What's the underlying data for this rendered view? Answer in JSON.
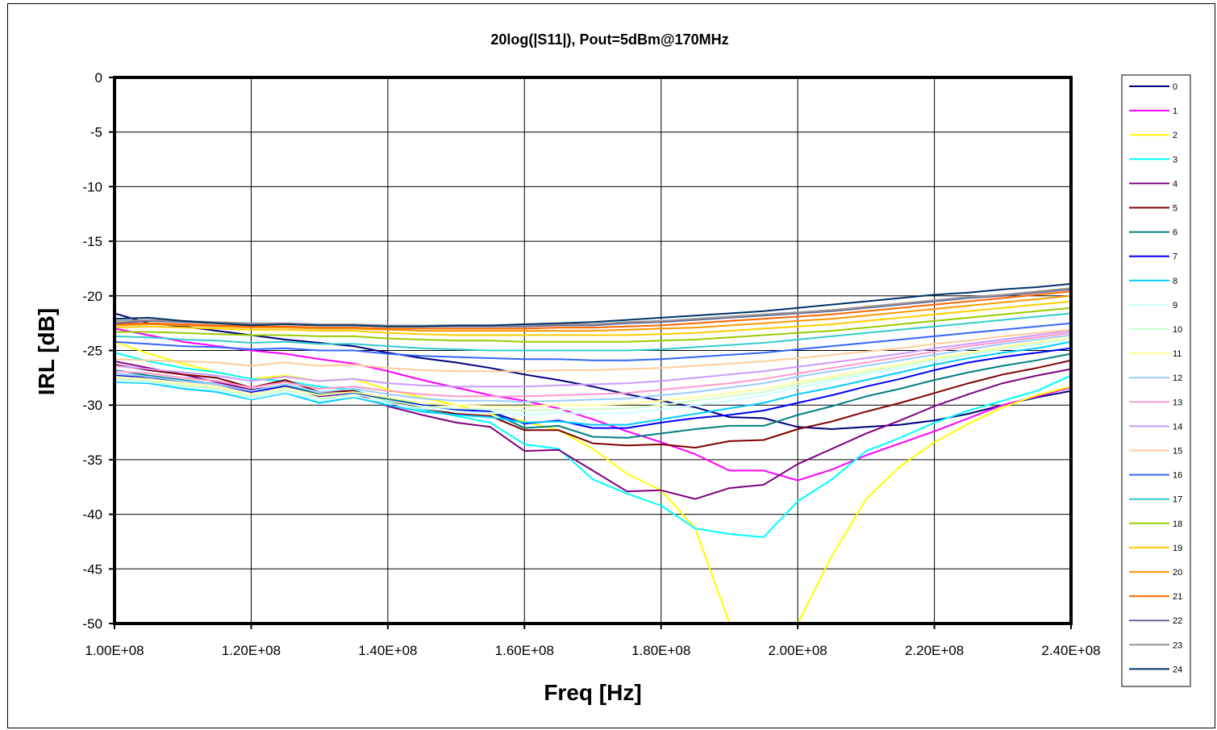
{
  "chart_data": {
    "type": "line",
    "title": "20log(|S11|), Pout=5dBm@170MHz",
    "xlabel": "Freq [Hz]",
    "ylabel": "IRL [dB]",
    "xlim": [
      100000000,
      240000000
    ],
    "ylim": [
      -50,
      0
    ],
    "x_ticks": [
      100000000,
      120000000,
      140000000,
      160000000,
      180000000,
      200000000,
      220000000,
      240000000
    ],
    "x_tick_labels": [
      "1.00E+08",
      "1.20E+08",
      "1.40E+08",
      "1.60E+08",
      "1.80E+08",
      "2.00E+08",
      "2.20E+08",
      "2.40E+08"
    ],
    "y_ticks": [
      0,
      -5,
      -10,
      -15,
      -20,
      -25,
      -30,
      -35,
      -40,
      -45,
      -50
    ],
    "y_tick_labels": [
      "0",
      "-5",
      "-10",
      "-15",
      "-20",
      "-25",
      "-30",
      "-35",
      "-40",
      "-45",
      "-50"
    ],
    "grid": true,
    "legend_position": "right",
    "x": [
      100000000,
      105000000,
      110000000,
      115000000,
      120000000,
      125000000,
      130000000,
      135000000,
      140000000,
      145000000,
      150000000,
      155000000,
      160000000,
      165000000,
      170000000,
      175000000,
      180000000,
      185000000,
      190000000,
      195000000,
      200000000,
      205000000,
      210000000,
      215000000,
      220000000,
      225000000,
      230000000,
      235000000,
      240000000
    ],
    "series": [
      {
        "name": "0",
        "color": "#000080",
        "values": [
          -21.6,
          -22.5,
          -22.8,
          -23.2,
          -23.6,
          -24.0,
          -24.3,
          -24.6,
          -25.2,
          -25.7,
          -26.1,
          -26.6,
          -27.2,
          -27.7,
          -28.3,
          -29.0,
          -29.6,
          -30.2,
          -31.1,
          -31.2,
          -32.0,
          -32.2,
          -32.0,
          -31.8,
          -31.4,
          -30.8,
          -30.0,
          -29.3,
          -28.7
        ]
      },
      {
        "name": "1",
        "color": "#FF00FF",
        "values": [
          -23.0,
          -23.6,
          -24.2,
          -24.6,
          -25.0,
          -25.3,
          -25.8,
          -26.2,
          -26.9,
          -27.7,
          -28.4,
          -29.1,
          -29.6,
          -30.3,
          -31.3,
          -32.4,
          -33.4,
          -34.5,
          -36.0,
          -36.0,
          -36.9,
          -35.9,
          -34.6,
          -33.5,
          -32.4,
          -31.2,
          -30.0,
          -29.2,
          -28.4
        ]
      },
      {
        "name": "2",
        "color": "#FFFF00",
        "values": [
          -24.2,
          -25.3,
          -26.2,
          -27.0,
          -27.6,
          -27.3,
          -27.8,
          -27.6,
          -28.6,
          -29.3,
          -30.0,
          -30.8,
          -31.5,
          -32.3,
          -34.0,
          -36.3,
          -37.8,
          -41.3,
          -50.0,
          -60.0,
          -50.0,
          -43.8,
          -38.6,
          -35.6,
          -33.4,
          -31.7,
          -30.2,
          -29.1,
          -28.3
        ]
      },
      {
        "name": "3",
        "color": "#00FFFF",
        "values": [
          -25.2,
          -26.0,
          -26.6,
          -27.0,
          -27.6,
          -27.8,
          -28.3,
          -28.6,
          -29.7,
          -30.4,
          -31.0,
          -31.6,
          -33.6,
          -34.0,
          -36.8,
          -38.1,
          -39.2,
          -41.3,
          -41.8,
          -42.1,
          -38.8,
          -36.8,
          -34.2,
          -33.0,
          -31.6,
          -30.5,
          -29.6,
          -28.7,
          -27.3
        ]
      },
      {
        "name": "4",
        "color": "#800080",
        "values": [
          -26.0,
          -26.6,
          -27.2,
          -27.9,
          -28.6,
          -28.2,
          -29.2,
          -28.9,
          -30.1,
          -30.9,
          -31.6,
          -32.0,
          -34.2,
          -34.1,
          -36.0,
          -37.9,
          -37.8,
          -38.6,
          -37.6,
          -37.3,
          -35.4,
          -34.0,
          -32.6,
          -31.4,
          -30.1,
          -29.0,
          -28.0,
          -27.3,
          -26.7
        ]
      },
      {
        "name": "5",
        "color": "#800000",
        "values": [
          -26.3,
          -26.8,
          -27.2,
          -27.5,
          -28.4,
          -27.7,
          -28.8,
          -28.7,
          -29.6,
          -30.3,
          -30.8,
          -31.0,
          -32.3,
          -32.3,
          -33.5,
          -33.7,
          -33.6,
          -33.9,
          -33.3,
          -33.2,
          -32.2,
          -31.5,
          -30.6,
          -29.8,
          -28.9,
          -28.0,
          -27.2,
          -26.6,
          -25.9
        ]
      },
      {
        "name": "6",
        "color": "#008080",
        "values": [
          -26.8,
          -27.3,
          -27.7,
          -28.1,
          -28.7,
          -28.2,
          -29.0,
          -28.9,
          -29.4,
          -30.0,
          -30.4,
          -30.6,
          -32.1,
          -31.9,
          -32.9,
          -33.0,
          -32.6,
          -32.2,
          -31.9,
          -31.9,
          -30.9,
          -30.1,
          -29.2,
          -28.5,
          -27.7,
          -27.0,
          -26.4,
          -25.9,
          -25.3
        ]
      },
      {
        "name": "7",
        "color": "#0000FF",
        "values": [
          -27.3,
          -27.5,
          -27.8,
          -28.1,
          -28.8,
          -28.3,
          -29.1,
          -28.9,
          -29.6,
          -30.0,
          -30.4,
          -30.6,
          -31.7,
          -31.4,
          -32.1,
          -32.1,
          -31.6,
          -31.2,
          -30.9,
          -30.5,
          -29.8,
          -29.1,
          -28.3,
          -27.6,
          -26.8,
          -26.1,
          -25.6,
          -25.2,
          -24.8
        ]
      },
      {
        "name": "8",
        "color": "#00CCFF",
        "values": [
          -27.9,
          -28.0,
          -28.5,
          -28.8,
          -29.5,
          -28.9,
          -29.8,
          -29.3,
          -30.0,
          -30.6,
          -30.9,
          -31.1,
          -31.6,
          -31.5,
          -31.8,
          -31.8,
          -31.3,
          -30.8,
          -30.3,
          -29.8,
          -29.0,
          -28.4,
          -27.7,
          -27.0,
          -26.3,
          -25.7,
          -25.2,
          -24.8,
          -24.2
        ]
      },
      {
        "name": "9",
        "color": "#CCFFFF",
        "values": [
          -27.8,
          -27.9,
          -28.3,
          -28.6,
          -29.4,
          -28.8,
          -29.6,
          -29.2,
          -29.8,
          -30.3,
          -30.6,
          -30.7,
          -30.9,
          -30.7,
          -30.8,
          -30.7,
          -30.4,
          -30.0,
          -29.6,
          -29.1,
          -28.4,
          -27.8,
          -27.2,
          -26.6,
          -26.0,
          -25.4,
          -24.9,
          -24.5,
          -24.0
        ]
      },
      {
        "name": "10",
        "color": "#CCFFCC",
        "values": [
          -27.6,
          -27.8,
          -28.2,
          -28.5,
          -29.2,
          -28.6,
          -29.4,
          -29.0,
          -29.6,
          -30.1,
          -30.3,
          -30.4,
          -30.5,
          -30.4,
          -30.4,
          -30.3,
          -30.0,
          -29.6,
          -29.2,
          -28.8,
          -28.1,
          -27.6,
          -27.0,
          -26.4,
          -25.8,
          -25.3,
          -24.8,
          -24.3,
          -23.9
        ]
      },
      {
        "name": "11",
        "color": "#FFFF99",
        "values": [
          -27.4,
          -27.6,
          -28.0,
          -28.3,
          -29.0,
          -28.4,
          -29.1,
          -28.8,
          -29.3,
          -29.8,
          -30.0,
          -30.1,
          -30.1,
          -30.0,
          -30.0,
          -29.9,
          -29.6,
          -29.3,
          -28.9,
          -28.5,
          -27.9,
          -27.4,
          -26.8,
          -26.3,
          -25.7,
          -25.2,
          -24.7,
          -24.2,
          -23.8
        ]
      },
      {
        "name": "12",
        "color": "#99CCFF",
        "values": [
          -27.1,
          -27.4,
          -27.8,
          -28.1,
          -28.7,
          -28.1,
          -28.8,
          -28.5,
          -29.0,
          -29.4,
          -29.6,
          -29.6,
          -29.7,
          -29.6,
          -29.5,
          -29.4,
          -29.1,
          -28.8,
          -28.4,
          -28.0,
          -27.4,
          -26.9,
          -26.4,
          -25.9,
          -25.4,
          -24.9,
          -24.4,
          -24.0,
          -23.6
        ]
      },
      {
        "name": "13",
        "color": "#FF99CC",
        "values": [
          -26.9,
          -27.1,
          -27.5,
          -27.8,
          -28.4,
          -27.9,
          -28.5,
          -28.3,
          -28.7,
          -29.0,
          -29.2,
          -29.2,
          -29.2,
          -29.1,
          -29.0,
          -28.9,
          -28.6,
          -28.3,
          -28.0,
          -27.6,
          -27.1,
          -26.6,
          -26.1,
          -25.6,
          -25.1,
          -24.6,
          -24.2,
          -23.8,
          -23.4
        ]
      },
      {
        "name": "14",
        "color": "#CC99FF",
        "values": [
          -26.4,
          -26.7,
          -27.0,
          -27.3,
          -27.8,
          -27.4,
          -27.8,
          -27.6,
          -28.0,
          -28.2,
          -28.3,
          -28.3,
          -28.3,
          -28.2,
          -28.1,
          -28.0,
          -27.8,
          -27.5,
          -27.2,
          -26.9,
          -26.5,
          -26.1,
          -25.7,
          -25.3,
          -24.8,
          -24.4,
          -24.0,
          -23.6,
          -23.2
        ]
      },
      {
        "name": "15",
        "color": "#FFCC99",
        "values": [
          -25.8,
          -25.9,
          -26.0,
          -26.1,
          -26.4,
          -26.1,
          -26.4,
          -26.3,
          -26.6,
          -26.8,
          -26.9,
          -26.9,
          -26.9,
          -26.8,
          -26.8,
          -26.7,
          -26.6,
          -26.4,
          -26.2,
          -26.0,
          -25.7,
          -25.4,
          -25.1,
          -24.8,
          -24.4,
          -24.1,
          -23.7,
          -23.4,
          -23.1
        ]
      },
      {
        "name": "16",
        "color": "#3366FF",
        "values": [
          -24.2,
          -24.4,
          -24.6,
          -24.7,
          -24.9,
          -24.8,
          -25.0,
          -25.0,
          -25.3,
          -25.5,
          -25.6,
          -25.7,
          -25.8,
          -25.8,
          -25.9,
          -25.9,
          -25.8,
          -25.6,
          -25.4,
          -25.2,
          -24.9,
          -24.6,
          -24.3,
          -24.0,
          -23.7,
          -23.4,
          -23.1,
          -22.8,
          -22.5
        ]
      },
      {
        "name": "17",
        "color": "#33CCCC",
        "values": [
          -23.7,
          -23.8,
          -24.0,
          -24.1,
          -24.3,
          -24.2,
          -24.4,
          -24.4,
          -24.6,
          -24.8,
          -24.9,
          -25.0,
          -25.0,
          -25.0,
          -25.0,
          -25.0,
          -24.9,
          -24.7,
          -24.5,
          -24.3,
          -24.0,
          -23.7,
          -23.4,
          -23.1,
          -22.8,
          -22.5,
          -22.2,
          -21.9,
          -21.6
        ]
      },
      {
        "name": "18",
        "color": "#99CC00",
        "values": [
          -23.3,
          -23.3,
          -23.4,
          -23.5,
          -23.6,
          -23.6,
          -23.7,
          -23.7,
          -23.9,
          -24.0,
          -24.1,
          -24.1,
          -24.2,
          -24.2,
          -24.2,
          -24.2,
          -24.1,
          -24.0,
          -23.8,
          -23.6,
          -23.4,
          -23.2,
          -22.9,
          -22.6,
          -22.3,
          -22.0,
          -21.7,
          -21.4,
          -21.1
        ]
      },
      {
        "name": "19",
        "color": "#FFCC00",
        "values": [
          -22.9,
          -22.8,
          -22.9,
          -23.0,
          -23.1,
          -23.1,
          -23.2,
          -23.2,
          -23.4,
          -23.5,
          -23.6,
          -23.6,
          -23.6,
          -23.6,
          -23.6,
          -23.6,
          -23.5,
          -23.4,
          -23.2,
          -23.0,
          -22.8,
          -22.6,
          -22.3,
          -22.0,
          -21.7,
          -21.4,
          -21.1,
          -20.8,
          -20.5
        ]
      },
      {
        "name": "20",
        "color": "#FF9900",
        "values": [
          -22.7,
          -22.6,
          -22.7,
          -22.8,
          -22.9,
          -22.9,
          -23.0,
          -23.0,
          -23.1,
          -23.2,
          -23.2,
          -23.2,
          -23.2,
          -23.2,
          -23.2,
          -23.1,
          -23.0,
          -22.9,
          -22.7,
          -22.5,
          -22.3,
          -22.1,
          -21.8,
          -21.5,
          -21.2,
          -20.9,
          -20.6,
          -20.3,
          -20.0
        ]
      },
      {
        "name": "21",
        "color": "#FF6600",
        "values": [
          -22.6,
          -22.5,
          -22.6,
          -22.7,
          -22.8,
          -22.8,
          -22.9,
          -22.9,
          -23.0,
          -23.0,
          -23.0,
          -23.0,
          -23.0,
          -22.9,
          -22.9,
          -22.8,
          -22.7,
          -22.5,
          -22.3,
          -22.1,
          -21.9,
          -21.7,
          -21.4,
          -21.1,
          -20.8,
          -20.5,
          -20.2,
          -19.9,
          -19.6
        ]
      },
      {
        "name": "22",
        "color": "#666699",
        "values": [
          -22.5,
          -22.3,
          -22.4,
          -22.5,
          -22.6,
          -22.6,
          -22.7,
          -22.7,
          -22.8,
          -22.8,
          -22.8,
          -22.8,
          -22.8,
          -22.7,
          -22.7,
          -22.5,
          -22.4,
          -22.2,
          -22.0,
          -21.8,
          -21.6,
          -21.4,
          -21.1,
          -20.8,
          -20.5,
          -20.2,
          -20.0,
          -19.7,
          -19.4
        ]
      },
      {
        "name": "23",
        "color": "#969696",
        "values": [
          -22.3,
          -22.2,
          -22.3,
          -22.4,
          -22.5,
          -22.5,
          -22.6,
          -22.6,
          -22.7,
          -22.7,
          -22.7,
          -22.7,
          -22.7,
          -22.6,
          -22.6,
          -22.4,
          -22.3,
          -22.1,
          -21.9,
          -21.7,
          -21.5,
          -21.3,
          -21.0,
          -20.7,
          -20.4,
          -20.1,
          -19.9,
          -19.6,
          -19.3
        ]
      },
      {
        "name": "24",
        "color": "#003366",
        "values": [
          -22.1,
          -22.0,
          -22.3,
          -22.5,
          -22.7,
          -22.6,
          -22.7,
          -22.7,
          -22.8,
          -22.8,
          -22.7,
          -22.7,
          -22.6,
          -22.5,
          -22.4,
          -22.2,
          -22.0,
          -21.8,
          -21.6,
          -21.4,
          -21.1,
          -20.8,
          -20.5,
          -20.2,
          -19.9,
          -19.7,
          -19.4,
          -19.2,
          -18.9
        ]
      }
    ]
  }
}
